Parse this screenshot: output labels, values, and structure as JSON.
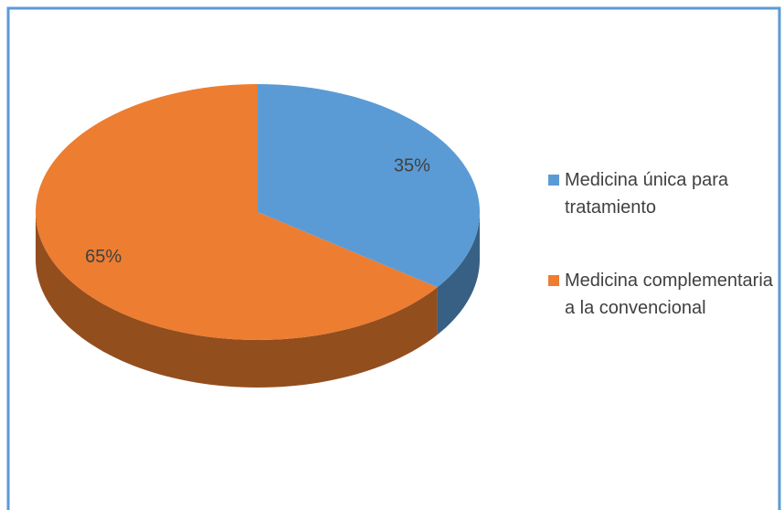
{
  "chart_data": {
    "type": "pie",
    "categories": [
      "Medicina única para tratamiento",
      "Medicina complementaria a la convencional"
    ],
    "values": [
      35,
      65
    ],
    "value_labels": [
      "35%",
      "65%"
    ],
    "colors": [
      "#5b9bd5",
      "#ed7d31"
    ],
    "legend": "right"
  }
}
